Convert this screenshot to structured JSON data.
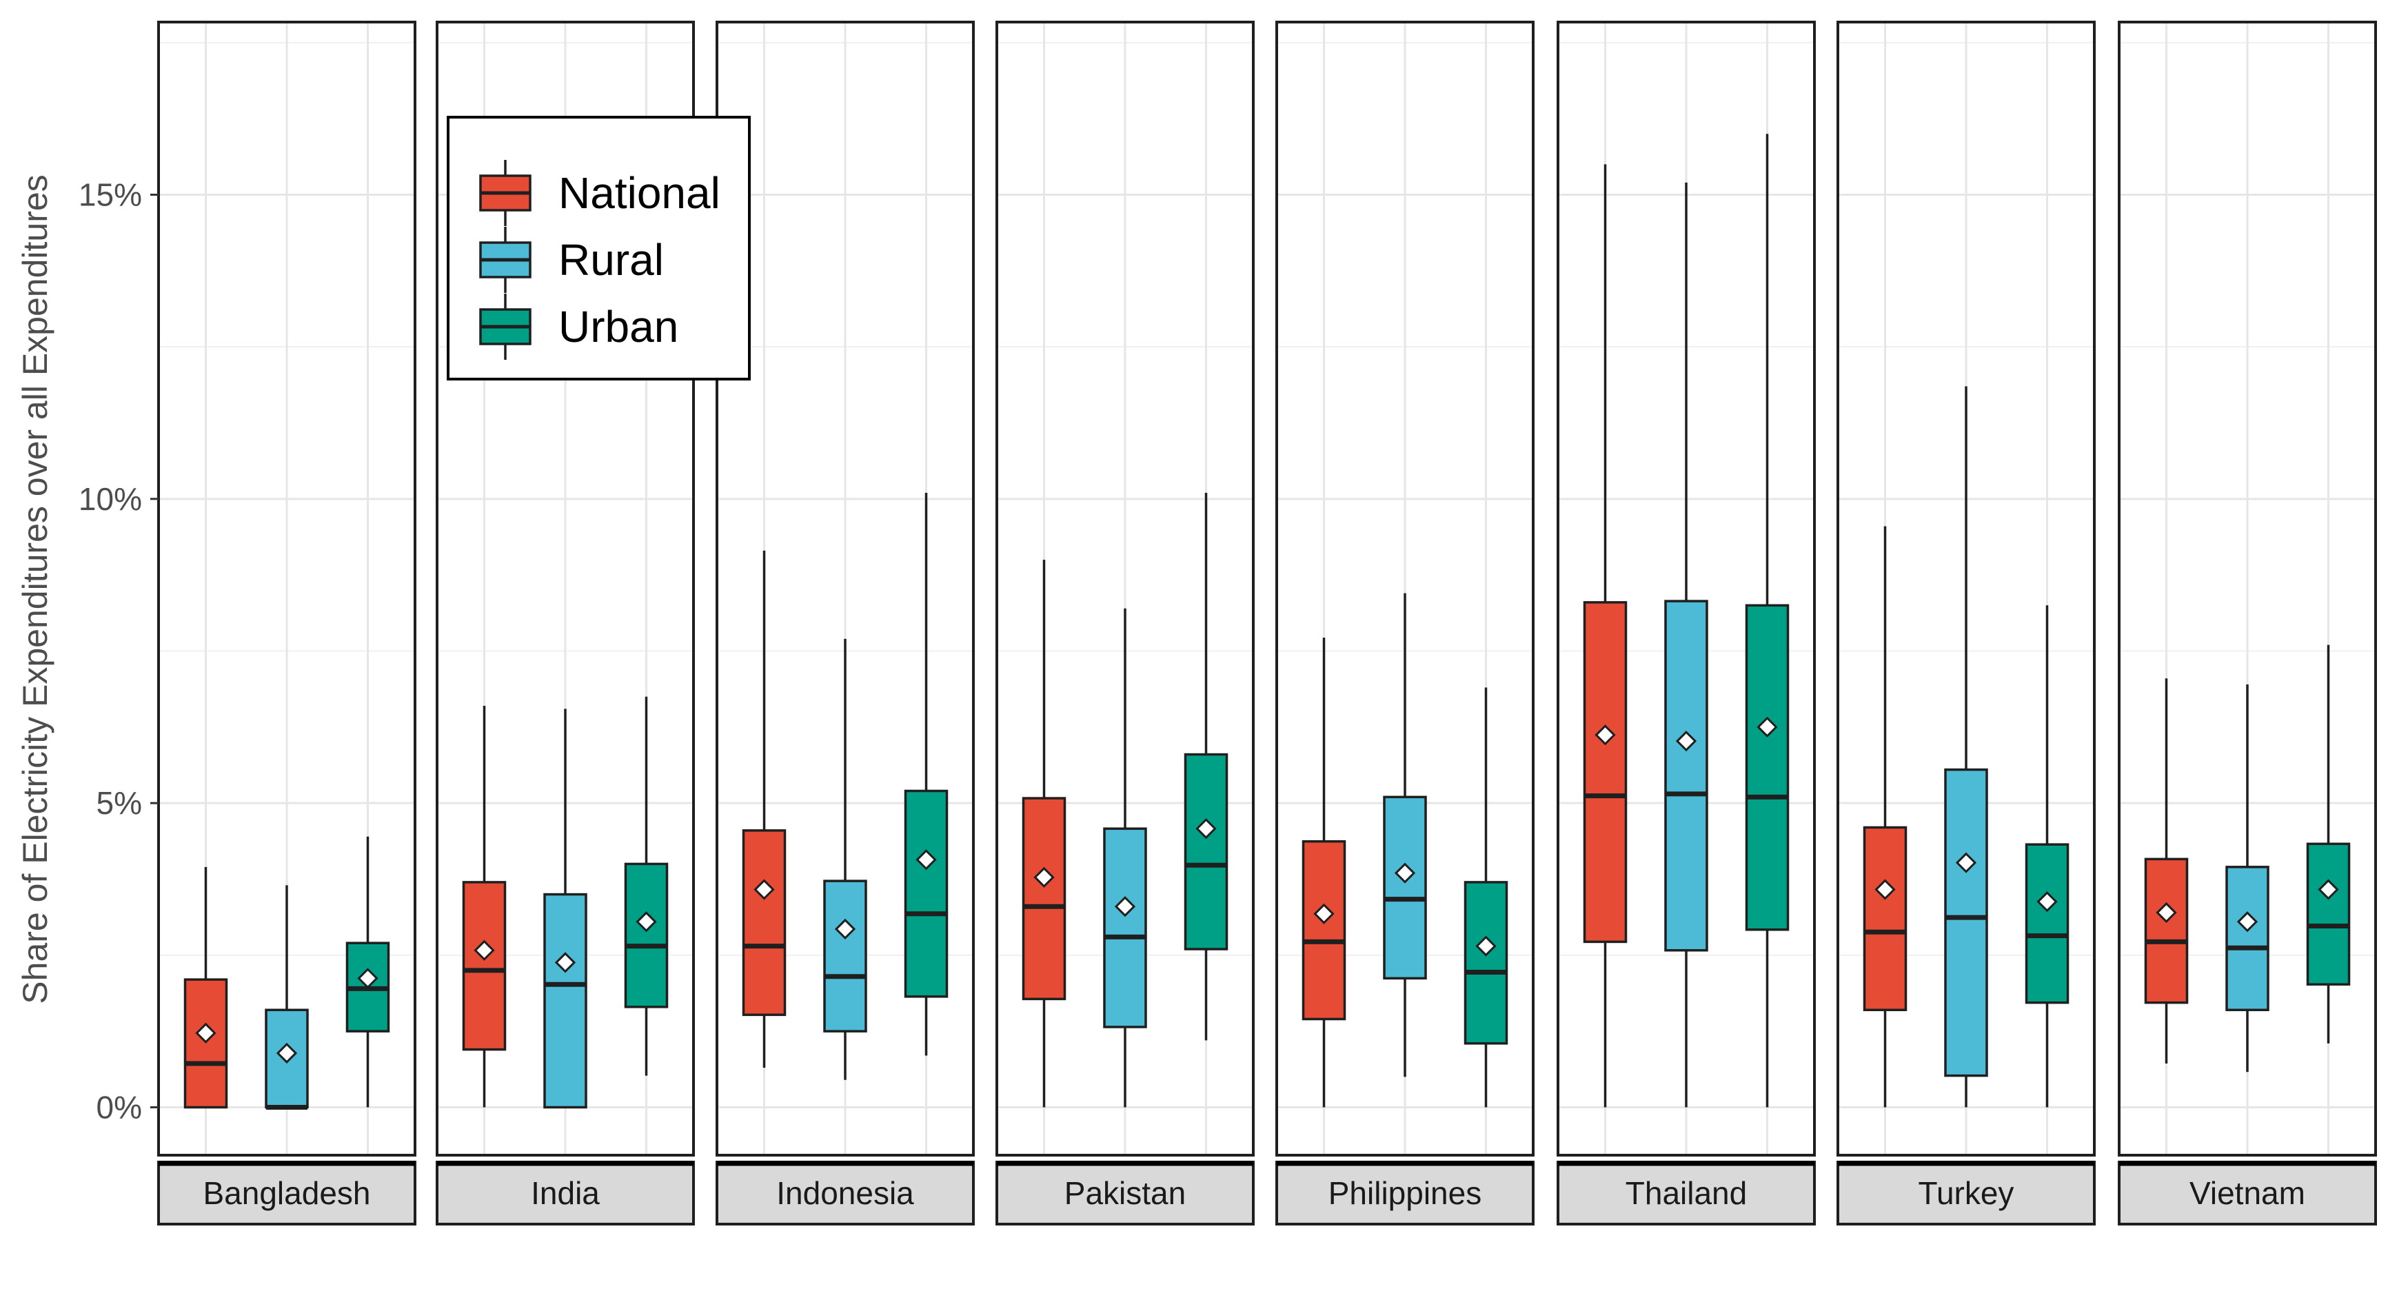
{
  "chart_data": {
    "type": "boxplot",
    "ylabel": "Share of Electricity Expenditures over all Expenditures",
    "ylim": [
      0,
      17.7
    ],
    "yticks": [
      {
        "value": 0,
        "label": "0%"
      },
      {
        "value": 5,
        "label": "5%"
      },
      {
        "value": 10,
        "label": "10%"
      },
      {
        "value": 15,
        "label": "15%"
      }
    ],
    "grid": true,
    "legend_position": "top-left",
    "series_order": [
      "National",
      "Rural",
      "Urban"
    ],
    "colors": {
      "National": "#E64B35",
      "Rural": "#4DBBD5",
      "Urban": "#00A087"
    },
    "legend": [
      {
        "name": "National",
        "color": "#E64B35"
      },
      {
        "name": "Rural",
        "color": "#4DBBD5"
      },
      {
        "name": "Urban",
        "color": "#00A087"
      }
    ],
    "panels": [
      {
        "country": "Bangladesh",
        "boxes": {
          "National": {
            "whisker_low": 0.0,
            "q1": 0.0,
            "median": 0.72,
            "q3": 2.1,
            "whisker_high": 3.95,
            "mean": 1.22
          },
          "Rural": {
            "whisker_low": 0.0,
            "q1": 0.0,
            "median": 0.0,
            "q3": 1.6,
            "whisker_high": 3.65,
            "mean": 0.89
          },
          "Urban": {
            "whisker_low": 0.0,
            "q1": 1.25,
            "median": 1.95,
            "q3": 2.7,
            "whisker_high": 4.45,
            "mean": 2.12
          }
        }
      },
      {
        "country": "India",
        "boxes": {
          "National": {
            "whisker_low": 0.0,
            "q1": 0.95,
            "median": 2.25,
            "q3": 3.7,
            "whisker_high": 6.6,
            "mean": 2.58
          },
          "Rural": {
            "whisker_low": 0.0,
            "q1": 0.0,
            "median": 2.02,
            "q3": 3.5,
            "whisker_high": 6.55,
            "mean": 2.38
          },
          "Urban": {
            "whisker_low": 0.52,
            "q1": 1.65,
            "median": 2.65,
            "q3": 4.0,
            "whisker_high": 6.75,
            "mean": 3.05
          }
        }
      },
      {
        "country": "Indonesia",
        "boxes": {
          "National": {
            "whisker_low": 0.65,
            "q1": 1.52,
            "median": 2.65,
            "q3": 4.55,
            "whisker_high": 9.15,
            "mean": 3.58
          },
          "Rural": {
            "whisker_low": 0.45,
            "q1": 1.25,
            "median": 2.15,
            "q3": 3.72,
            "whisker_high": 7.7,
            "mean": 2.93
          },
          "Urban": {
            "whisker_low": 0.85,
            "q1": 1.82,
            "median": 3.18,
            "q3": 5.2,
            "whisker_high": 10.1,
            "mean": 4.07
          }
        }
      },
      {
        "country": "Pakistan",
        "boxes": {
          "National": {
            "whisker_low": 0.0,
            "q1": 1.78,
            "median": 3.3,
            "q3": 5.08,
            "whisker_high": 9.0,
            "mean": 3.78
          },
          "Rural": {
            "whisker_low": 0.0,
            "q1": 1.32,
            "median": 2.8,
            "q3": 4.58,
            "whisker_high": 8.2,
            "mean": 3.3
          },
          "Urban": {
            "whisker_low": 1.1,
            "q1": 2.6,
            "median": 3.98,
            "q3": 5.8,
            "whisker_high": 10.1,
            "mean": 4.58
          }
        }
      },
      {
        "country": "Philippines",
        "boxes": {
          "National": {
            "whisker_low": 0.0,
            "q1": 1.45,
            "median": 2.72,
            "q3": 4.37,
            "whisker_high": 7.72,
            "mean": 3.18
          },
          "Rural": {
            "whisker_low": 0.5,
            "q1": 2.12,
            "median": 3.42,
            "q3": 5.1,
            "whisker_high": 8.45,
            "mean": 3.85
          },
          "Urban": {
            "whisker_low": 0.0,
            "q1": 1.05,
            "median": 2.22,
            "q3": 3.7,
            "whisker_high": 6.9,
            "mean": 2.65
          }
        }
      },
      {
        "country": "Thailand",
        "boxes": {
          "National": {
            "whisker_low": 0.0,
            "q1": 2.72,
            "median": 5.12,
            "q3": 8.3,
            "whisker_high": 15.5,
            "mean": 6.12
          },
          "Rural": {
            "whisker_low": 0.0,
            "q1": 2.58,
            "median": 5.15,
            "q3": 8.32,
            "whisker_high": 15.2,
            "mean": 6.02
          },
          "Urban": {
            "whisker_low": 0.0,
            "q1": 2.92,
            "median": 5.1,
            "q3": 8.25,
            "whisker_high": 16.0,
            "mean": 6.25
          }
        }
      },
      {
        "country": "Turkey",
        "boxes": {
          "National": {
            "whisker_low": 0.0,
            "q1": 1.6,
            "median": 2.88,
            "q3": 4.6,
            "whisker_high": 9.55,
            "mean": 3.58
          },
          "Rural": {
            "whisker_low": 0.0,
            "q1": 0.52,
            "median": 3.12,
            "q3": 5.55,
            "whisker_high": 11.85,
            "mean": 4.02
          },
          "Urban": {
            "whisker_low": 0.0,
            "q1": 1.72,
            "median": 2.82,
            "q3": 4.32,
            "whisker_high": 8.25,
            "mean": 3.38
          }
        }
      },
      {
        "country": "Vietnam",
        "boxes": {
          "National": {
            "whisker_low": 0.72,
            "q1": 1.72,
            "median": 2.72,
            "q3": 4.08,
            "whisker_high": 7.05,
            "mean": 3.2
          },
          "Rural": {
            "whisker_low": 0.58,
            "q1": 1.6,
            "median": 2.62,
            "q3": 3.95,
            "whisker_high": 6.95,
            "mean": 3.05
          },
          "Urban": {
            "whisker_low": 1.05,
            "q1": 2.02,
            "median": 2.98,
            "q3": 4.33,
            "whisker_high": 7.6,
            "mean": 3.58
          }
        }
      }
    ]
  }
}
